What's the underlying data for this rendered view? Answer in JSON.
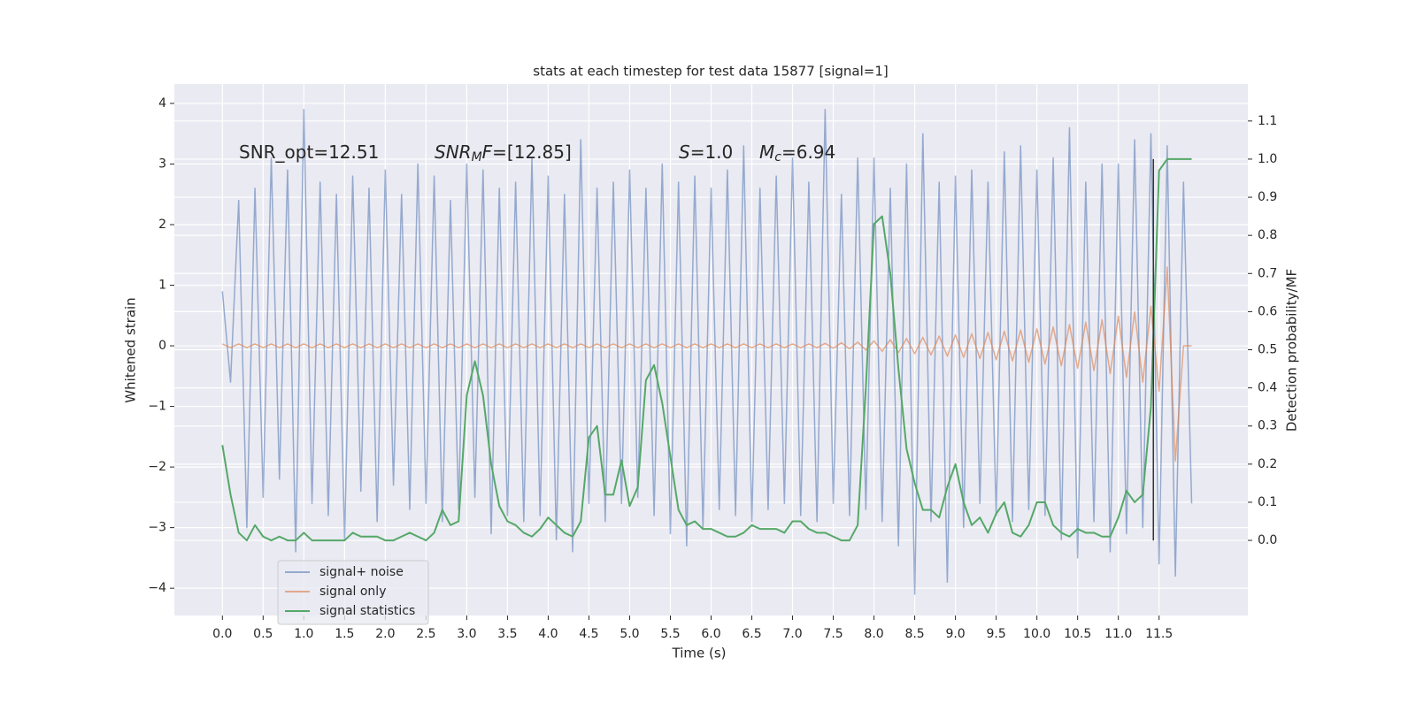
{
  "chart_data": {
    "type": "line",
    "title": "stats at each timestep for test data 15877 [signal=1]",
    "xlabel": "Time (s)",
    "ylabel": "Whitened strain",
    "y2label": "Detection probability/MF",
    "x": [
      0,
      0.1,
      0.2,
      0.3,
      0.4,
      0.5,
      0.6,
      0.7,
      0.8,
      0.9,
      1.0,
      1.1,
      1.2,
      1.3,
      1.4,
      1.5,
      1.6,
      1.7,
      1.8,
      1.9,
      2.0,
      2.1,
      2.2,
      2.3,
      2.4,
      2.5,
      2.6,
      2.7,
      2.8,
      2.9,
      3.0,
      3.1,
      3.2,
      3.3,
      3.4,
      3.5,
      3.6,
      3.7,
      3.8,
      3.9,
      4.0,
      4.1,
      4.2,
      4.3,
      4.4,
      4.5,
      4.6,
      4.7,
      4.8,
      4.9,
      5.0,
      5.1,
      5.2,
      5.3,
      5.4,
      5.5,
      5.6,
      5.7,
      5.8,
      5.9,
      6.0,
      6.1,
      6.2,
      6.3,
      6.4,
      6.5,
      6.6,
      6.7,
      6.8,
      6.9,
      7.0,
      7.1,
      7.2,
      7.3,
      7.4,
      7.5,
      7.6,
      7.7,
      7.8,
      7.9,
      8.0,
      8.1,
      8.2,
      8.3,
      8.4,
      8.5,
      8.6,
      8.7,
      8.8,
      8.9,
      9.0,
      9.1,
      9.2,
      9.3,
      9.4,
      9.5,
      9.6,
      9.7,
      9.8,
      9.9,
      10.0,
      10.1,
      10.2,
      10.3,
      10.4,
      10.5,
      10.6,
      10.7,
      10.8,
      10.9,
      11.0,
      11.1,
      11.2,
      11.3,
      11.4,
      11.5,
      11.6,
      11.7,
      11.8,
      11.9
    ],
    "series": [
      {
        "name": "signal+ noise",
        "color": "#4c72b0",
        "opacity": 0.55,
        "axis": "y",
        "values": [
          0.9,
          -0.6,
          2.4,
          -3.0,
          2.6,
          -2.5,
          3.1,
          -2.2,
          2.9,
          -3.4,
          3.9,
          -2.6,
          2.7,
          -2.8,
          2.5,
          -3.2,
          2.8,
          -2.4,
          2.6,
          -2.9,
          2.9,
          -2.3,
          2.5,
          -2.7,
          3.0,
          -2.6,
          2.8,
          -2.9,
          2.4,
          -2.7,
          3.0,
          -2.5,
          2.9,
          -3.1,
          2.6,
          -2.8,
          2.7,
          -2.9,
          3.1,
          -2.8,
          2.8,
          -3.2,
          2.5,
          -3.4,
          3.4,
          -2.6,
          2.6,
          -2.9,
          2.7,
          -2.6,
          2.9,
          -2.5,
          2.6,
          -2.8,
          3.0,
          -3.1,
          2.7,
          -3.3,
          2.8,
          -3.0,
          2.6,
          -2.7,
          2.9,
          -2.8,
          3.3,
          -2.9,
          2.6,
          -2.7,
          2.8,
          -2.6,
          3.1,
          -2.8,
          2.7,
          -2.9,
          3.9,
          -2.6,
          2.5,
          -2.8,
          3.1,
          -2.7,
          3.1,
          -2.9,
          2.6,
          -3.3,
          3.0,
          -4.1,
          3.5,
          -2.9,
          2.7,
          -3.9,
          2.8,
          -3.0,
          2.9,
          -2.6,
          2.7,
          -2.8,
          3.2,
          -2.9,
          3.3,
          -2.7,
          2.9,
          -2.8,
          3.1,
          -3.2,
          3.6,
          -3.5,
          2.7,
          -2.9,
          3.0,
          -3.4,
          3.0,
          -3.1,
          3.4,
          -3.0,
          3.5,
          -3.6,
          3.3,
          -3.8,
          2.7,
          -2.6
        ]
      },
      {
        "name": "signal only",
        "color": "#dd8452",
        "opacity": 0.65,
        "axis": "y",
        "values": [
          0.03,
          -0.03,
          0.03,
          -0.03,
          0.03,
          -0.03,
          0.03,
          -0.03,
          0.03,
          -0.03,
          0.03,
          -0.03,
          0.03,
          -0.03,
          0.03,
          -0.03,
          0.03,
          -0.03,
          0.03,
          -0.03,
          0.03,
          -0.03,
          0.03,
          -0.03,
          0.03,
          -0.03,
          0.03,
          -0.03,
          0.03,
          -0.03,
          0.03,
          -0.03,
          0.03,
          -0.03,
          0.03,
          -0.03,
          0.03,
          -0.03,
          0.03,
          -0.03,
          0.03,
          -0.03,
          0.03,
          -0.03,
          0.03,
          -0.03,
          0.03,
          -0.03,
          0.03,
          -0.03,
          0.03,
          -0.03,
          0.03,
          -0.03,
          0.03,
          -0.03,
          0.03,
          -0.03,
          0.03,
          -0.03,
          0.03,
          -0.03,
          0.03,
          -0.03,
          0.03,
          -0.03,
          0.03,
          -0.03,
          0.03,
          -0.03,
          0.03,
          -0.03,
          0.03,
          -0.03,
          0.04,
          -0.04,
          0.05,
          -0.05,
          0.06,
          -0.07,
          0.08,
          -0.09,
          0.1,
          -0.11,
          0.12,
          -0.13,
          0.14,
          -0.15,
          0.16,
          -0.17,
          0.18,
          -0.19,
          0.2,
          -0.21,
          0.22,
          -0.23,
          0.24,
          -0.25,
          0.26,
          -0.27,
          0.28,
          -0.3,
          0.31,
          -0.33,
          0.35,
          -0.37,
          0.39,
          -0.41,
          0.43,
          -0.46,
          0.49,
          -0.52,
          0.56,
          -0.6,
          0.65,
          -0.75,
          1.3,
          -1.9,
          0.0,
          0.0
        ]
      },
      {
        "name": "signal statistics",
        "color": "#55a868",
        "opacity": 1,
        "axis": "y2",
        "values": [
          0.25,
          0.12,
          0.02,
          0.0,
          0.04,
          0.01,
          0.0,
          0.01,
          0.0,
          0.0,
          0.02,
          0.0,
          0.0,
          0.0,
          0.0,
          0.0,
          0.02,
          0.01,
          0.01,
          0.01,
          0.0,
          0.0,
          0.01,
          0.02,
          0.01,
          0.0,
          0.02,
          0.08,
          0.04,
          0.05,
          0.38,
          0.47,
          0.38,
          0.2,
          0.09,
          0.05,
          0.04,
          0.02,
          0.01,
          0.03,
          0.06,
          0.04,
          0.02,
          0.01,
          0.05,
          0.27,
          0.3,
          0.12,
          0.12,
          0.21,
          0.09,
          0.14,
          0.42,
          0.46,
          0.36,
          0.22,
          0.08,
          0.04,
          0.05,
          0.03,
          0.03,
          0.02,
          0.01,
          0.01,
          0.02,
          0.04,
          0.03,
          0.03,
          0.03,
          0.02,
          0.05,
          0.05,
          0.03,
          0.02,
          0.02,
          0.01,
          0.0,
          0.0,
          0.04,
          0.4,
          0.83,
          0.85,
          0.7,
          0.45,
          0.24,
          0.15,
          0.08,
          0.08,
          0.06,
          0.14,
          0.2,
          0.1,
          0.04,
          0.06,
          0.02,
          0.07,
          0.1,
          0.02,
          0.01,
          0.04,
          0.1,
          0.1,
          0.04,
          0.02,
          0.01,
          0.03,
          0.02,
          0.02,
          0.01,
          0.01,
          0.06,
          0.13,
          0.1,
          0.12,
          0.35,
          0.97,
          1.0,
          1.0,
          1.0,
          1.0
        ]
      }
    ],
    "vline": {
      "x": 11.43,
      "y2_range": [
        0.0,
        1.0
      ],
      "color": "#333333"
    },
    "annotations": [
      [
        {
          "text": "SNR_opt=12.51",
          "style": "normal"
        }
      ],
      [
        {
          "text": "SNR",
          "style": "italic"
        },
        {
          "text": "M",
          "style": "sub"
        },
        {
          "text": "F",
          "style": "italic"
        },
        {
          "text": "=[12.85]",
          "style": "normal"
        }
      ],
      [
        {
          "text": "S",
          "style": "italic"
        },
        {
          "text": "=1.0",
          "style": "normal"
        }
      ],
      [
        {
          "text": "M",
          "style": "italic"
        },
        {
          "text": "c",
          "style": "sub"
        },
        {
          "text": "=6.94",
          "style": "normal"
        }
      ]
    ],
    "xlim": [
      -0.59,
      12.59
    ],
    "ylim": [
      -4.45,
      4.32
    ],
    "y2lim": [
      -0.197,
      1.197
    ],
    "xticks": [
      {
        "value": 0,
        "label": "0.0"
      },
      0.5,
      {
        "value": 1,
        "label": "1.0"
      },
      1.5,
      {
        "value": 2,
        "label": "2.0"
      },
      2.5,
      {
        "value": 3,
        "label": "3.0"
      },
      3.5,
      {
        "value": 4,
        "label": "4.0"
      },
      4.5,
      {
        "value": 5,
        "label": "5.0"
      },
      5.5,
      {
        "value": 6,
        "label": "6.0"
      },
      6.5,
      {
        "value": 7,
        "label": "7.0"
      },
      7.5,
      {
        "value": 8,
        "label": "8.0"
      },
      8.5,
      {
        "value": 9,
        "label": "9.0"
      },
      9.5,
      {
        "value": 10,
        "label": "10.0"
      },
      10.5,
      {
        "value": 11,
        "label": "11.0"
      },
      11.5
    ],
    "yticks": [
      {
        "value": -4,
        "label": "−4"
      },
      {
        "value": -3,
        "label": "−3"
      },
      {
        "value": -2,
        "label": "−2"
      },
      {
        "value": -1,
        "label": "−1"
      },
      0,
      1,
      2,
      3,
      4
    ],
    "y2ticks": [
      {
        "value": 0,
        "label": "0.0"
      },
      0.1,
      0.2,
      0.3,
      0.4,
      0.5,
      0.6,
      0.7,
      0.8,
      0.9,
      {
        "value": 1,
        "label": "1.0"
      },
      1.1
    ],
    "grid": true,
    "legend": "lower left"
  }
}
